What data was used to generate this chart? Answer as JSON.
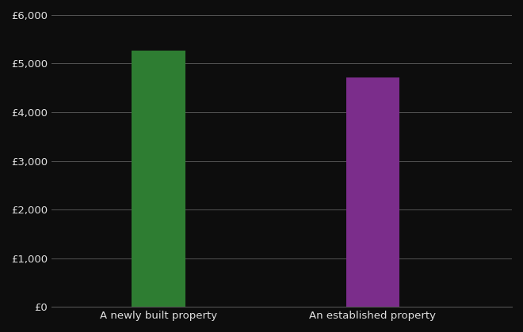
{
  "categories": [
    "A newly built property",
    "An established property"
  ],
  "values": [
    5260,
    4720
  ],
  "bar_colors": [
    "#2e7d32",
    "#7b2d8b"
  ],
  "background_color": "#0d0d0d",
  "text_color": "#e0e0e0",
  "grid_color": "#555555",
  "ylim": [
    0,
    6000
  ],
  "ytick_step": 1000,
  "bar_width": 0.25,
  "x_positions": [
    1,
    2
  ],
  "xlim": [
    0.5,
    2.65
  ],
  "xlabel": "",
  "ylabel": "",
  "figsize": [
    6.6,
    4.2
  ],
  "dpi": 100
}
